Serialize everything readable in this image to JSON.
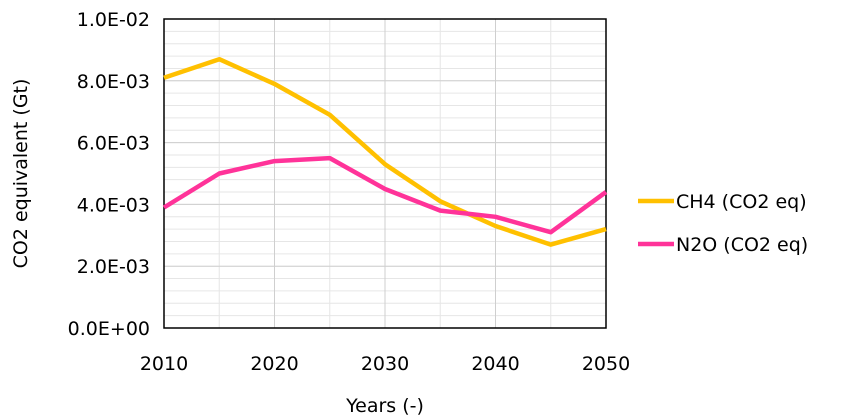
{
  "chart_data": {
    "type": "line",
    "title": "",
    "xlabel": "Years (-)",
    "ylabel": "CO2 equivalent (Gt)",
    "x": [
      2010,
      2015,
      2020,
      2025,
      2030,
      2035,
      2040,
      2045,
      2050
    ],
    "xlim": [
      2010,
      2050
    ],
    "ylim": [
      0,
      0.01
    ],
    "x_ticks": [
      2010,
      2020,
      2030,
      2040,
      2050
    ],
    "x_tick_labels": [
      "2010",
      "2020",
      "2030",
      "2040",
      "2050"
    ],
    "y_ticks": [
      0,
      0.002,
      0.004,
      0.006,
      0.008,
      0.01
    ],
    "y_tick_labels": [
      "0.0E+00",
      "2.0E-03",
      "4.0E-03",
      "6.0E-03",
      "8.0E-03",
      "1.0E-02"
    ],
    "grid": true,
    "legend_position": "right",
    "series": [
      {
        "name": "CH4 (CO2 eq)",
        "color": "#FFC000",
        "values": [
          0.0081,
          0.0087,
          0.0079,
          0.0069,
          0.0053,
          0.0041,
          0.0033,
          0.0027,
          0.0032
        ]
      },
      {
        "name": "N2O (CO2 eq)",
        "color": "#FF3399",
        "values": [
          0.0039,
          0.005,
          0.0054,
          0.0055,
          0.0045,
          0.0038,
          0.0036,
          0.0031,
          0.0044
        ]
      }
    ]
  }
}
